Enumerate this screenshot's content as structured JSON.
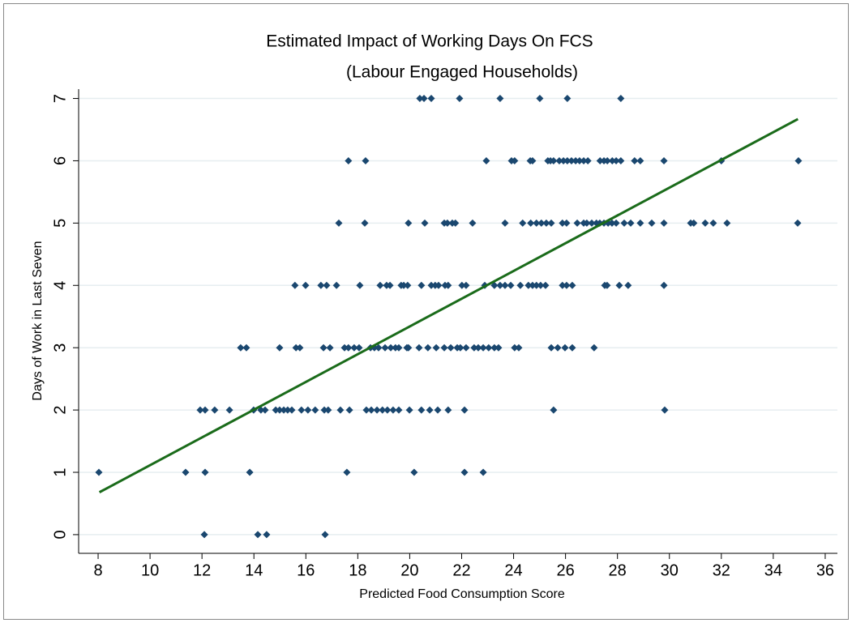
{
  "chart_data": {
    "type": "scatter",
    "title": "Estimated Impact of Working Days On FCS",
    "subtitle": "(Labour Engaged Households)",
    "x_label": "Predicted Food Consumption Score",
    "y_label": "Days of Work in Last Seven",
    "xlim": [
      7.25,
      36.47
    ],
    "ylim": [
      -0.3,
      7.15
    ],
    "xticks": [
      8,
      10,
      12,
      14,
      16,
      18,
      20,
      22,
      24,
      26,
      28,
      30,
      32,
      34,
      36
    ],
    "yticks": [
      0,
      1,
      2,
      3,
      4,
      5,
      6,
      7
    ],
    "grid": true,
    "series": [
      {
        "mark": "scatter",
        "color": "#1a476f",
        "x": [
          20.39,
          20.55,
          20.83,
          21.92,
          23.48,
          25.01,
          26.07,
          28.13,
          17.64,
          18.3,
          22.95,
          23.92,
          24.04,
          24.64,
          24.73,
          25.32,
          25.42,
          25.54,
          25.76,
          25.92,
          26.07,
          26.23,
          26.39,
          26.54,
          26.7,
          26.86,
          27.33,
          27.48,
          27.61,
          27.8,
          27.95,
          28.13,
          28.66,
          28.88,
          29.79,
          32.0,
          34.97,
          17.27,
          18.27,
          19.95,
          20.58,
          21.33,
          21.45,
          21.64,
          21.76,
          22.42,
          23.67,
          24.35,
          24.66,
          24.88,
          25.07,
          25.26,
          25.45,
          25.88,
          26.04,
          26.45,
          26.7,
          26.82,
          27.01,
          27.19,
          27.32,
          27.48,
          27.64,
          27.79,
          27.95,
          28.26,
          28.51,
          28.88,
          29.32,
          29.79,
          30.82,
          30.94,
          31.38,
          31.69,
          32.22,
          34.94,
          15.58,
          15.99,
          16.58,
          16.8,
          17.18,
          18.08,
          18.86,
          19.11,
          19.24,
          19.67,
          19.77,
          19.92,
          20.45,
          20.83,
          20.98,
          21.11,
          21.36,
          21.48,
          22.01,
          22.17,
          22.89,
          23.26,
          23.48,
          23.67,
          23.89,
          24.26,
          24.57,
          24.73,
          24.88,
          25.04,
          25.23,
          25.88,
          26.04,
          26.26,
          27.51,
          27.6,
          28.07,
          28.41,
          29.79,
          13.49,
          13.71,
          14.99,
          15.62,
          15.77,
          16.68,
          16.93,
          17.49,
          17.64,
          17.86,
          18.05,
          18.49,
          18.64,
          18.8,
          19.05,
          19.27,
          19.45,
          19.58,
          19.89,
          19.95,
          20.36,
          20.7,
          21.02,
          21.33,
          21.58,
          21.83,
          21.95,
          22.17,
          22.48,
          22.64,
          22.83,
          23.04,
          23.26,
          23.42,
          24.04,
          24.2,
          25.45,
          25.7,
          25.98,
          26.26,
          27.1,
          11.93,
          12.12,
          12.49,
          13.06,
          13.99,
          14.27,
          14.43,
          14.84,
          14.99,
          15.15,
          15.3,
          15.46,
          15.83,
          16.08,
          16.36,
          16.71,
          16.86,
          17.33,
          17.68,
          18.33,
          18.52,
          18.74,
          18.95,
          19.14,
          19.36,
          19.58,
          19.99,
          20.45,
          20.77,
          21.08,
          21.48,
          22.11,
          25.54,
          29.82,
          8.03,
          11.37,
          12.12,
          13.84,
          17.58,
          20.17,
          22.11,
          22.83,
          12.09,
          14.15,
          14.49,
          16.74
        ],
        "values": [
          7,
          7,
          7,
          7,
          7,
          7,
          7,
          7,
          6,
          6,
          6,
          6,
          6,
          6,
          6,
          6,
          6,
          6,
          6,
          6,
          6,
          6,
          6,
          6,
          6,
          6,
          6,
          6,
          6,
          6,
          6,
          6,
          6,
          6,
          6,
          6,
          6,
          5,
          5,
          5,
          5,
          5,
          5,
          5,
          5,
          5,
          5,
          5,
          5,
          5,
          5,
          5,
          5,
          5,
          5,
          5,
          5,
          5,
          5,
          5,
          5,
          5,
          5,
          5,
          5,
          5,
          5,
          5,
          5,
          5,
          5,
          5,
          5,
          5,
          5,
          5,
          4,
          4,
          4,
          4,
          4,
          4,
          4,
          4,
          4,
          4,
          4,
          4,
          4,
          4,
          4,
          4,
          4,
          4,
          4,
          4,
          4,
          4,
          4,
          4,
          4,
          4,
          4,
          4,
          4,
          4,
          4,
          4,
          4,
          4,
          4,
          4,
          4,
          4,
          4,
          3,
          3,
          3,
          3,
          3,
          3,
          3,
          3,
          3,
          3,
          3,
          3,
          3,
          3,
          3,
          3,
          3,
          3,
          3,
          3,
          3,
          3,
          3,
          3,
          3,
          3,
          3,
          3,
          3,
          3,
          3,
          3,
          3,
          3,
          3,
          3,
          3,
          3,
          3,
          3,
          3,
          2,
          2,
          2,
          2,
          2,
          2,
          2,
          2,
          2,
          2,
          2,
          2,
          2,
          2,
          2,
          2,
          2,
          2,
          2,
          2,
          2,
          2,
          2,
          2,
          2,
          2,
          2,
          2,
          2,
          2,
          2,
          2,
          2,
          2,
          1,
          1,
          1,
          1,
          1,
          1,
          1,
          1,
          0,
          0,
          0,
          0
        ]
      },
      {
        "mark": "line",
        "color": "#1a6b1a",
        "x": [
          8.05,
          34.95
        ],
        "values": [
          0.68,
          6.67
        ]
      }
    ]
  }
}
